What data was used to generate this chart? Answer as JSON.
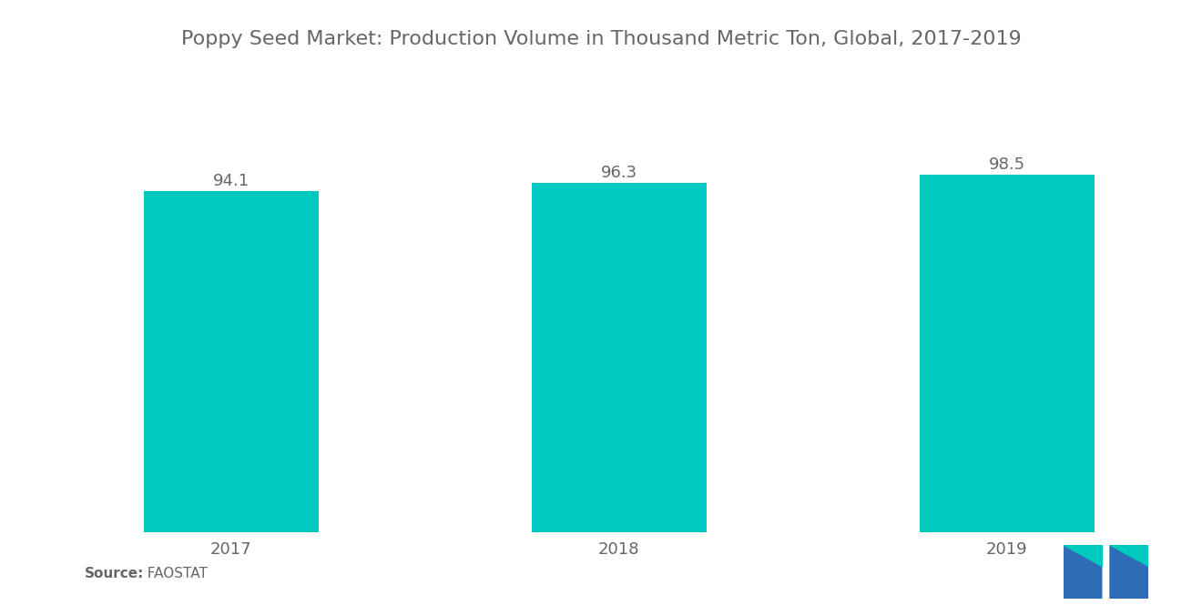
{
  "title": "Poppy Seed Market: Production Volume in Thousand Metric Ton, Global, 2017-2019",
  "categories": [
    "2017",
    "2018",
    "2019"
  ],
  "values": [
    94.1,
    96.3,
    98.5
  ],
  "bar_color": "#00C9C0",
  "background_color": "#ffffff",
  "title_fontsize": 16,
  "label_fontsize": 13,
  "value_fontsize": 13,
  "source_bold": "Source:",
  "source_normal": "  FAOSTAT",
  "ylim_min": 0,
  "ylim_max": 105,
  "bar_width": 0.45,
  "text_color": "#666666",
  "logo_color_blue": "#2E6CB5",
  "logo_color_teal": "#00C9C0"
}
